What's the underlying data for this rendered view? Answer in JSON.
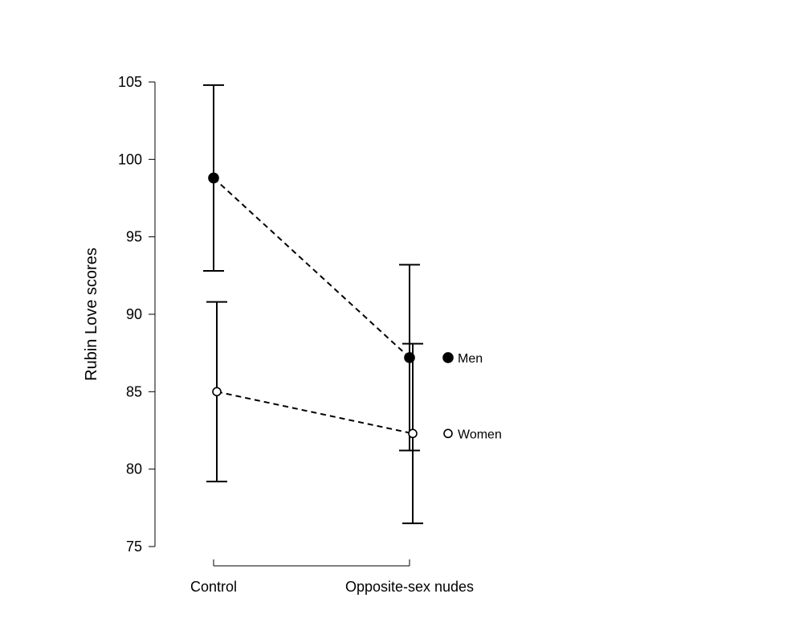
{
  "chart_data": {
    "type": "line",
    "ylabel": "Rubin Love scores",
    "xlabel": "",
    "ylim": [
      75,
      105
    ],
    "yticks": [
      75,
      80,
      85,
      90,
      95,
      100,
      105
    ],
    "categories": [
      "Control",
      "Opposite-sex nudes"
    ],
    "legend_position": "right",
    "grid": false,
    "series": [
      {
        "name": "Men",
        "marker": "filled-circle",
        "color": "#000000",
        "values": [
          98.8,
          87.2
        ],
        "error_low": [
          92.8,
          81.2
        ],
        "error_high": [
          104.8,
          93.2
        ]
      },
      {
        "name": "Women",
        "marker": "open-circle",
        "color": "#000000",
        "values": [
          85.0,
          82.3
        ],
        "error_low": [
          79.2,
          76.5
        ],
        "error_high": [
          90.8,
          88.1
        ]
      }
    ]
  }
}
